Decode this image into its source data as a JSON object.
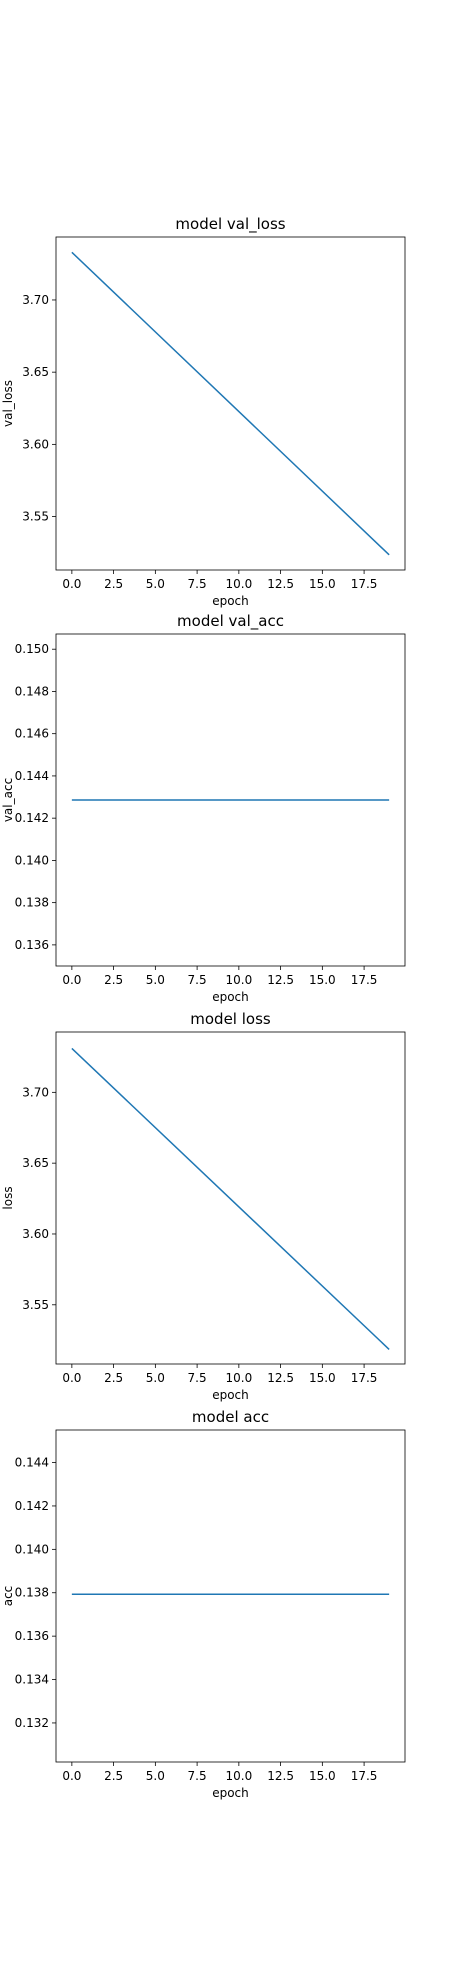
{
  "figure": {
    "line_color": "#1f77b4",
    "background": "#ffffff"
  },
  "chart_data": [
    {
      "type": "line",
      "title": "model val_loss",
      "xlabel": "epoch",
      "ylabel": "val_loss",
      "x": [
        0,
        19
      ],
      "series": [
        {
          "values": [
            3.733,
            3.5235
          ]
        }
      ],
      "xlim": [
        -0.95,
        19.95
      ],
      "ylim": [
        3.513,
        3.7436
      ],
      "xticks": [
        0.0,
        2.5,
        5.0,
        7.5,
        10.0,
        12.5,
        15.0,
        17.5
      ],
      "xtick_labels": [
        "0.0",
        "2.5",
        "5.0",
        "7.5",
        "10.0",
        "12.5",
        "15.0",
        "17.5"
      ],
      "yticks": [
        3.55,
        3.6,
        3.65,
        3.7
      ],
      "ytick_labels": [
        "3.55",
        "3.60",
        "3.65",
        "3.70"
      ],
      "grid": false,
      "legend": "none"
    },
    {
      "type": "line",
      "title": "model val_acc",
      "xlabel": "epoch",
      "ylabel": "val_acc",
      "x": [
        0,
        19
      ],
      "series": [
        {
          "values": [
            0.14286,
            0.14286
          ]
        }
      ],
      "xlim": [
        -0.95,
        19.95
      ],
      "ylim": [
        0.135,
        0.15072
      ],
      "xticks": [
        0.0,
        2.5,
        5.0,
        7.5,
        10.0,
        12.5,
        15.0,
        17.5
      ],
      "xtick_labels": [
        "0.0",
        "2.5",
        "5.0",
        "7.5",
        "10.0",
        "12.5",
        "15.0",
        "17.5"
      ],
      "yticks": [
        0.136,
        0.138,
        0.14,
        0.142,
        0.144,
        0.146,
        0.148,
        0.15
      ],
      "ytick_labels": [
        "0.136",
        "0.138",
        "0.140",
        "0.142",
        "0.144",
        "0.146",
        "0.148",
        "0.150"
      ],
      "grid": false,
      "legend": "none"
    },
    {
      "type": "line",
      "title": "model loss",
      "xlabel": "epoch",
      "ylabel": "loss",
      "x": [
        0,
        19
      ],
      "series": [
        {
          "values": [
            3.731,
            3.5185
          ]
        }
      ],
      "xlim": [
        -0.95,
        19.95
      ],
      "ylim": [
        3.5082,
        3.7426
      ],
      "xticks": [
        0.0,
        2.5,
        5.0,
        7.5,
        10.0,
        12.5,
        15.0,
        17.5
      ],
      "xtick_labels": [
        "0.0",
        "2.5",
        "5.0",
        "7.5",
        "10.0",
        "12.5",
        "15.0",
        "17.5"
      ],
      "yticks": [
        3.55,
        3.6,
        3.65,
        3.7
      ],
      "ytick_labels": [
        "3.55",
        "3.60",
        "3.65",
        "3.70"
      ],
      "grid": false,
      "legend": "none"
    },
    {
      "type": "line",
      "title": "model acc",
      "xlabel": "epoch",
      "ylabel": "acc",
      "x": [
        0,
        19
      ],
      "series": [
        {
          "values": [
            0.13793,
            0.13793
          ]
        }
      ],
      "xlim": [
        -0.95,
        19.95
      ],
      "ylim": [
        0.1302,
        0.1455
      ],
      "xticks": [
        0.0,
        2.5,
        5.0,
        7.5,
        10.0,
        12.5,
        15.0,
        17.5
      ],
      "xtick_labels": [
        "0.0",
        "2.5",
        "5.0",
        "7.5",
        "10.0",
        "12.5",
        "15.0",
        "17.5"
      ],
      "yticks": [
        0.132,
        0.134,
        0.136,
        0.138,
        0.14,
        0.142,
        0.144
      ],
      "ytick_labels": [
        "0.132",
        "0.134",
        "0.136",
        "0.138",
        "0.140",
        "0.142",
        "0.144"
      ],
      "grid": false,
      "legend": "none"
    }
  ]
}
